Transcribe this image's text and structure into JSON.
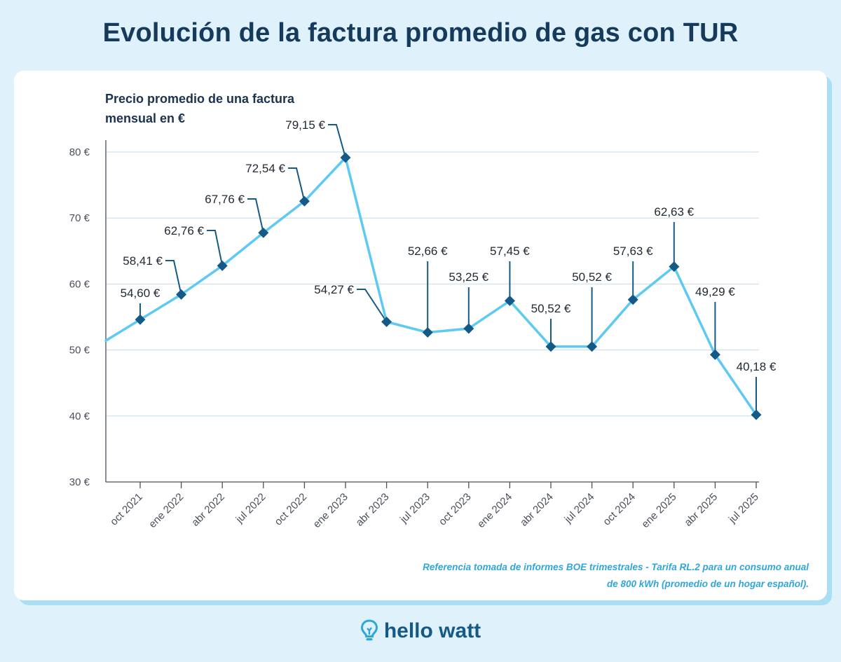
{
  "header": {
    "title": "Evolución de la factura promedio de gas con TUR"
  },
  "footer": {
    "note_line1": "Referencia tomada de informes BOE trimestrales - Tarifa RL.2 para un consumo anual",
    "note_line2": "de 800 kWh (promedio de un hogar español).",
    "logo_text": "hello watt",
    "logo_icon": "lightbulb-icon"
  },
  "colors": {
    "background": "#dff2fb",
    "line": "#5ccaf2",
    "marker": "#155a87",
    "title": "#163a5c",
    "note": "#2fa6db"
  },
  "chart_data": {
    "type": "line",
    "title": "Evolución de la factura promedio de gas con TUR",
    "ylabel_line1": "Precio promedio de una factura",
    "ylabel_line2": "mensual en €",
    "xlabel": "",
    "ylim": [
      30,
      80
    ],
    "yticks": [
      30,
      40,
      50,
      60,
      70,
      80
    ],
    "ytick_labels": [
      "30 €",
      "40 €",
      "50 €",
      "60 €",
      "70 €",
      "80 €"
    ],
    "grid": true,
    "categories": [
      "oct 2021",
      "ene 2022",
      "abr 2022",
      "jul 2022",
      "oct 2022",
      "ene 2023",
      "abr 2023",
      "jul 2023",
      "oct 2023",
      "ene 2024",
      "abr 2024",
      "jul 2024",
      "oct 2024",
      "ene 2025",
      "abr 2025",
      "jul 2025"
    ],
    "values": [
      54.6,
      58.41,
      62.76,
      67.76,
      72.54,
      79.15,
      54.27,
      52.66,
      53.25,
      57.45,
      50.52,
      50.52,
      57.63,
      62.63,
      49.29,
      40.18
    ],
    "value_labels": [
      "54,60 €",
      "58,41 €",
      "62,76 €",
      "67,76 €",
      "72,54 €",
      "79,15 €",
      "54,27 €",
      "52,66 €",
      "53,25 €",
      "57,45 €",
      "50,52 €",
      "50,52 €",
      "57,63 €",
      "62,63 €",
      "49,29 €",
      "40,18 €"
    ]
  }
}
